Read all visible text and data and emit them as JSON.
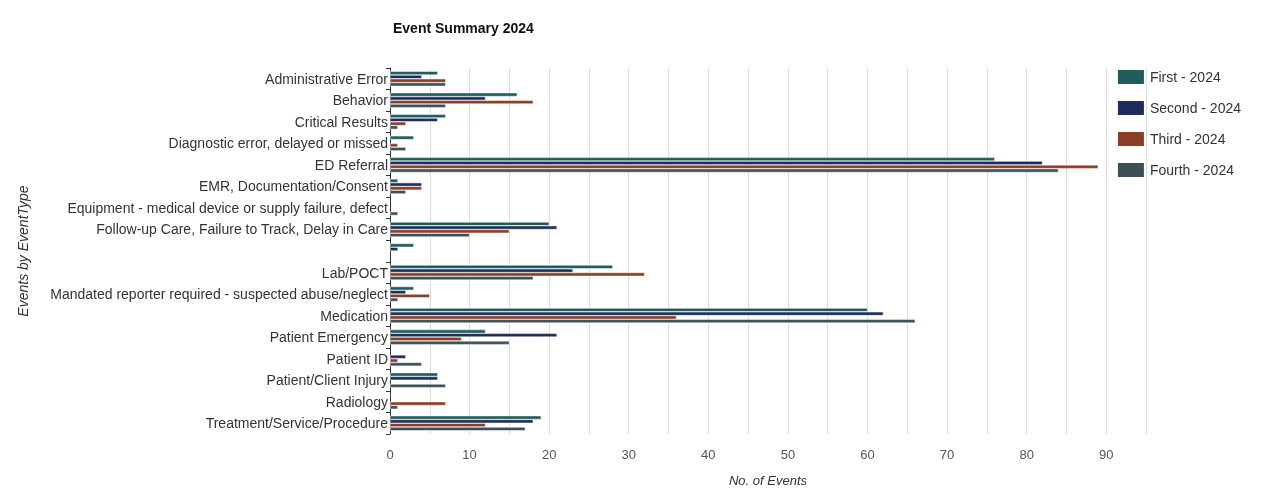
{
  "chart_data": {
    "type": "bar",
    "orientation": "horizontal",
    "title": "Event Summary 2024",
    "xlabel": "No. of Events",
    "ylabel": "Events by EventType",
    "categories": [
      "Administrative Error",
      "Behavior",
      "Critical Results",
      "Diagnostic error, delayed or missed",
      "ED Referral",
      "EMR, Documentation/Consent",
      "Equipment - medical device or supply failure, defect",
      "Follow-up Care, Failure to Track, Delay in Care",
      null,
      "Lab/POCT",
      "Mandated reporter required - suspected abuse/neglect",
      "Medication",
      "Patient Emergency",
      "Patient ID",
      "Patient/Client Injury",
      "Radiology",
      "Treatment/Service/Procedure"
    ],
    "series": [
      {
        "name": "First - 2024",
        "color": "#1f5c5c",
        "values": [
          6,
          16,
          7,
          3,
          76,
          1,
          null,
          20,
          3,
          28,
          3,
          60,
          12,
          null,
          6,
          null,
          19
        ]
      },
      {
        "name": "Second - 2024",
        "color": "#1f2d5c",
        "values": [
          4,
          12,
          6,
          null,
          82,
          4,
          null,
          21,
          1,
          23,
          2,
          62,
          21,
          2,
          6,
          null,
          18
        ]
      },
      {
        "name": "Third - 2024",
        "color": "#8b3e25",
        "values": [
          7,
          18,
          2,
          1,
          89,
          4,
          null,
          15,
          null,
          32,
          5,
          36,
          9,
          1,
          null,
          7,
          12
        ]
      },
      {
        "name": "Fourth - 2024",
        "color": "#3d4f57",
        "values": [
          7,
          7,
          1,
          2,
          84,
          2,
          1,
          10,
          null,
          18,
          1,
          66,
          15,
          4,
          7,
          1,
          17
        ]
      }
    ],
    "xlim": [
      0,
      95
    ],
    "xticks": [
      0,
      {
        "value": 5,
        "label": null
      },
      10,
      {
        "value": 15,
        "label": null
      },
      20,
      {
        "value": 25,
        "label": null
      },
      30,
      {
        "value": 35,
        "label": null
      },
      40,
      {
        "value": 45,
        "label": null
      },
      50,
      {
        "value": 55,
        "label": null
      },
      60,
      {
        "value": 65,
        "label": null
      },
      70,
      {
        "value": 75,
        "label": null
      },
      80,
      {
        "value": 85,
        "label": null
      },
      90,
      {
        "value": 95,
        "label": null
      }
    ],
    "grid": "x",
    "legend": "top right"
  }
}
